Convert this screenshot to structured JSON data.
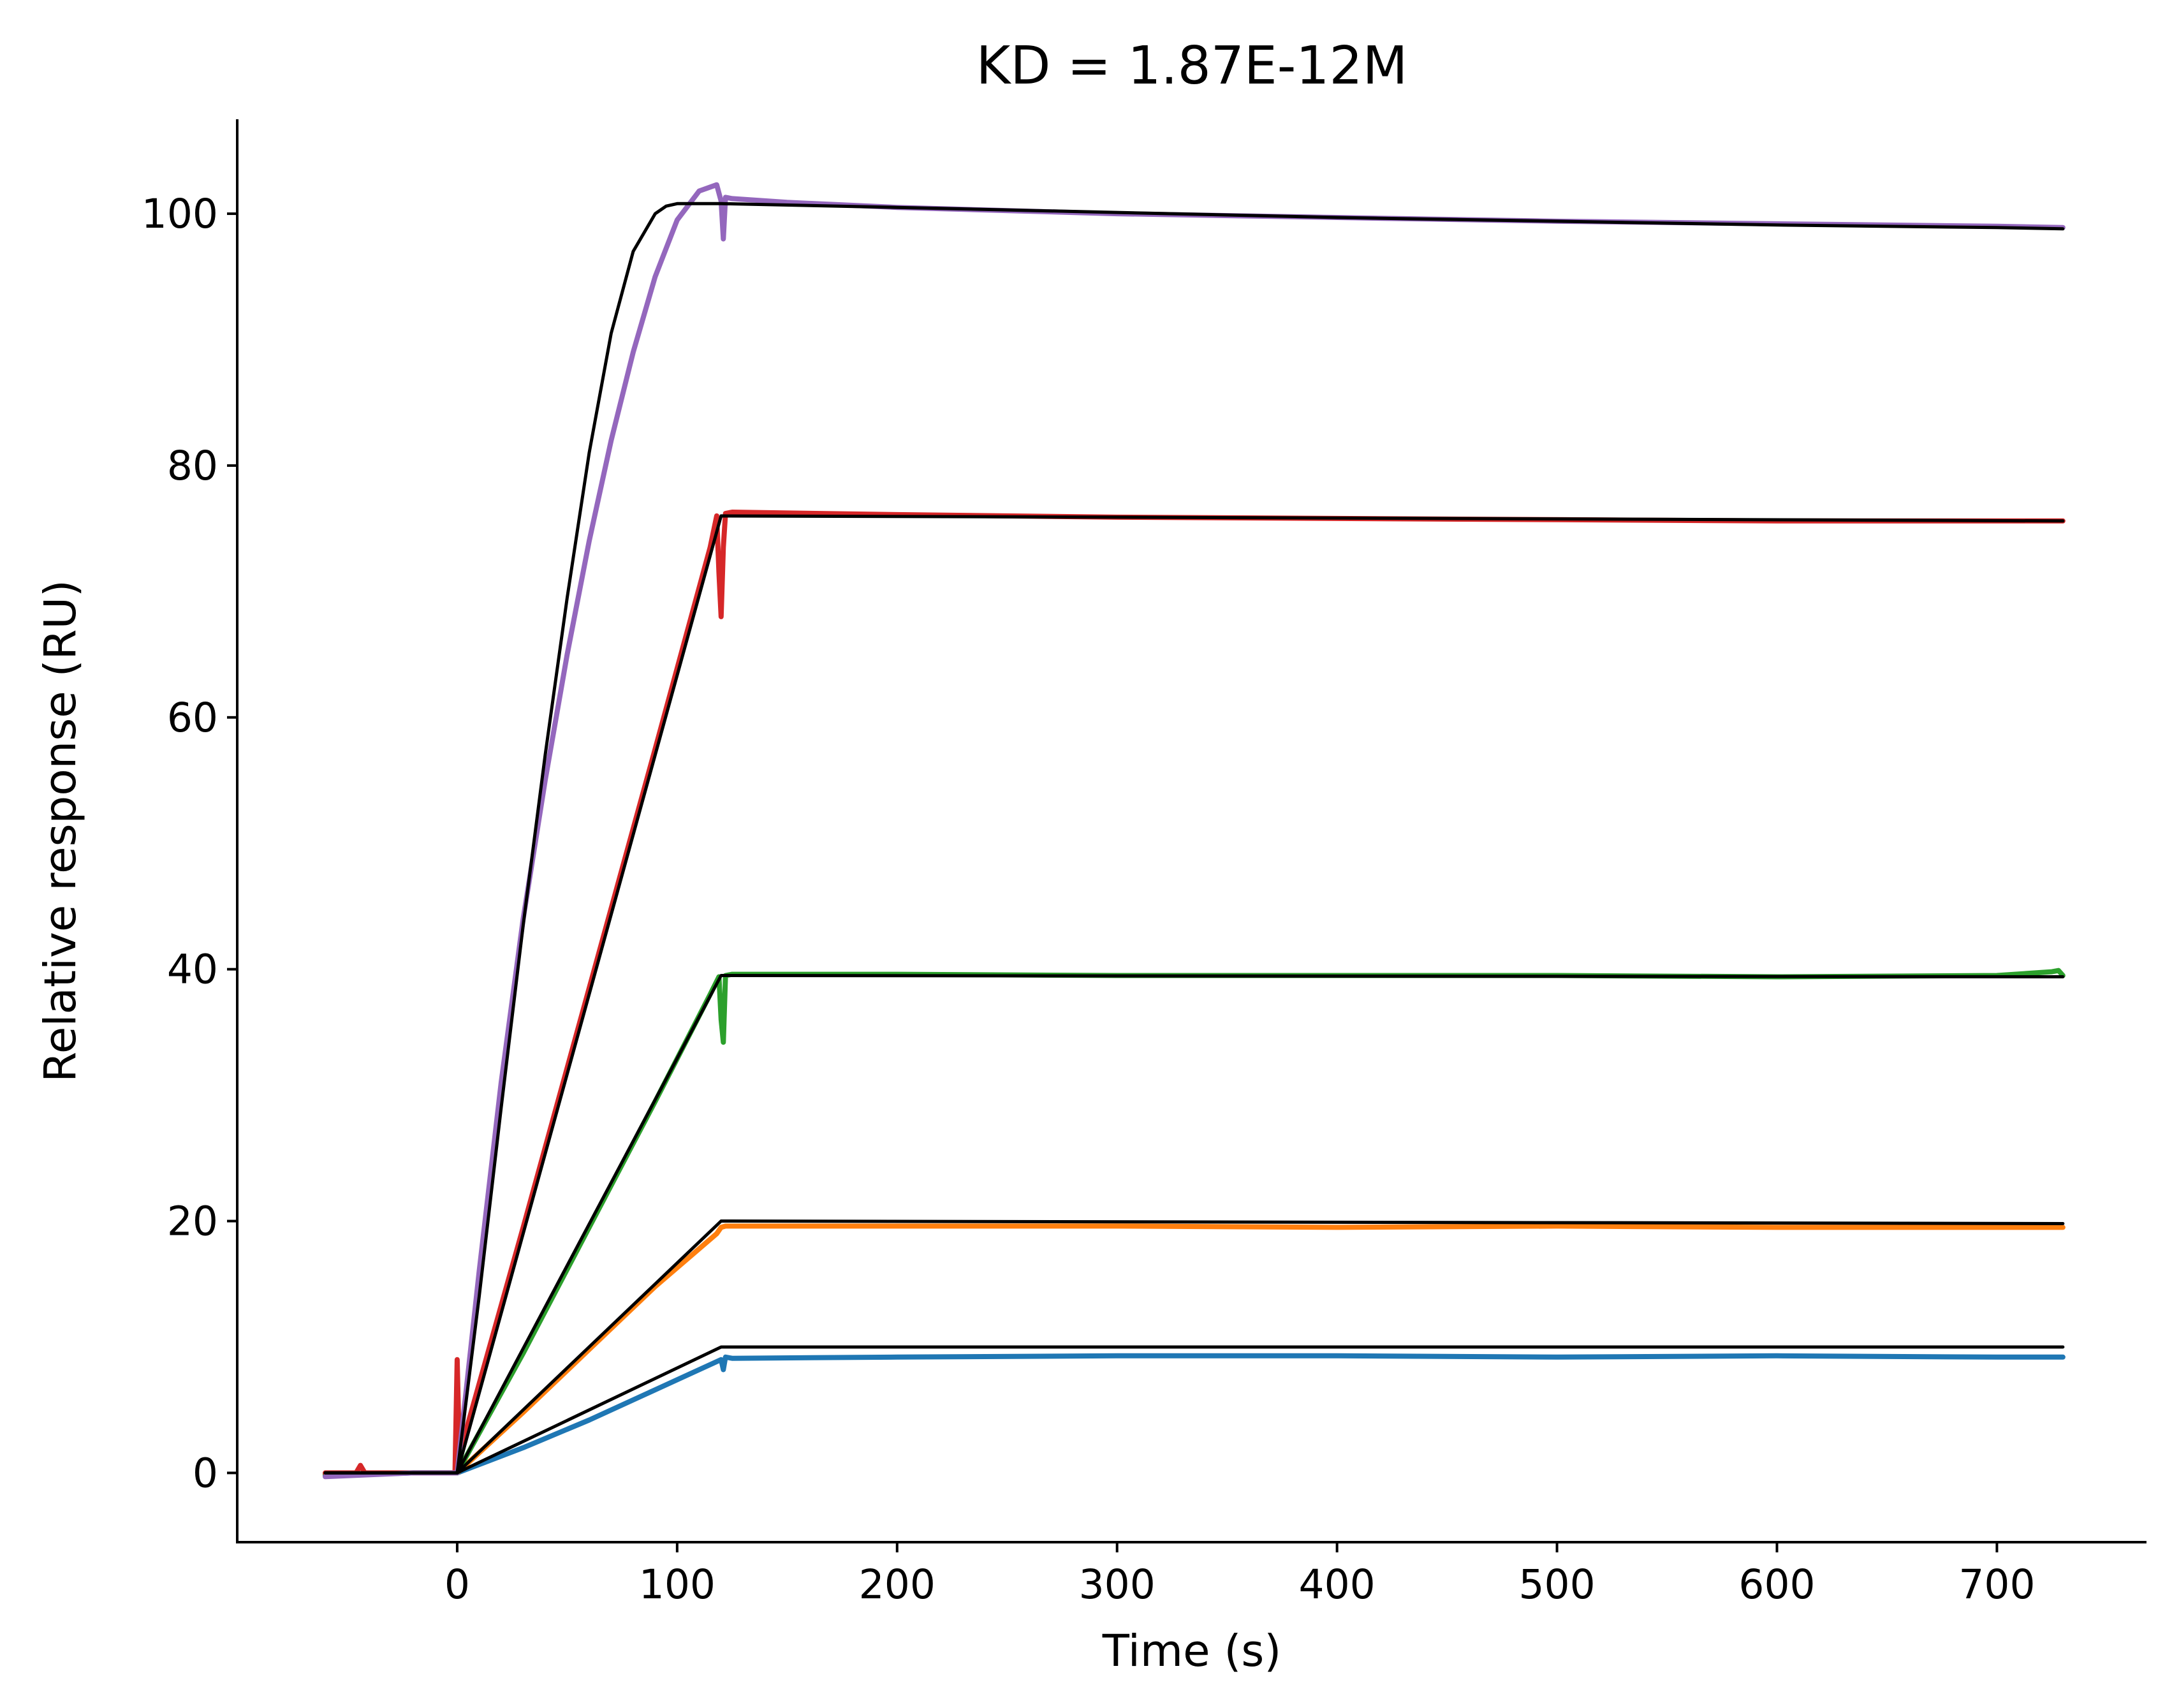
{
  "chart_data": {
    "type": "line",
    "title": "KD = 1.87E-12M",
    "xlabel": "Time (s)",
    "ylabel": "Relative response (RU)",
    "xlim": [
      -100,
      768
    ],
    "ylim": [
      -5.5,
      107.5
    ],
    "xticks": [
      0,
      100,
      200,
      300,
      400,
      500,
      600,
      700
    ],
    "yticks": [
      0,
      20,
      40,
      60,
      80,
      100
    ],
    "grid": false,
    "legend": "none",
    "series": [
      {
        "color": "#1f77b4",
        "x": [
          -60,
          -20,
          0,
          30,
          60,
          90,
          115,
          120,
          121,
          122,
          125,
          200,
          300,
          400,
          500,
          600,
          700,
          730
        ],
        "y": [
          -0.2,
          0,
          0,
          2.0,
          4.2,
          6.6,
          8.6,
          9.0,
          8.2,
          9.2,
          9.1,
          9.2,
          9.3,
          9.3,
          9.2,
          9.3,
          9.2,
          9.2
        ]
      },
      {
        "color": "#ff7f0e",
        "x": [
          -60,
          -20,
          0,
          30,
          60,
          90,
          118,
          120,
          122,
          200,
          300,
          400,
          500,
          600,
          700,
          730
        ],
        "y": [
          -0.1,
          0,
          0,
          4.8,
          9.8,
          14.8,
          19.0,
          19.5,
          19.6,
          19.6,
          19.6,
          19.5,
          19.6,
          19.5,
          19.5,
          19.5
        ]
      },
      {
        "color": "#2ca02c",
        "x": [
          -60,
          -20,
          0,
          30,
          60,
          90,
          115,
          119,
          120,
          121,
          122,
          125,
          200,
          300,
          400,
          500,
          600,
          700,
          725,
          728,
          730
        ],
        "y": [
          -0.1,
          0,
          0,
          9.5,
          19.5,
          29.5,
          38.0,
          39.4,
          36.0,
          34.2,
          39.5,
          39.6,
          39.6,
          39.5,
          39.5,
          39.5,
          39.4,
          39.5,
          39.8,
          39.9,
          39.5
        ]
      },
      {
        "color": "#d62728",
        "x": [
          -60,
          -46,
          -44,
          -42,
          -20,
          -1,
          0,
          1,
          30,
          60,
          90,
          115,
          118,
          119,
          120,
          121,
          122,
          125,
          200,
          300,
          400,
          500,
          600,
          700,
          730
        ],
        "y": [
          0,
          0,
          0.6,
          0,
          0,
          0,
          9.0,
          1.5,
          19.5,
          38.5,
          57.5,
          73.5,
          76.0,
          71.5,
          68.0,
          73.5,
          76.2,
          76.3,
          76.1,
          75.9,
          75.8,
          75.7,
          75.6,
          75.6,
          75.6
        ]
      },
      {
        "color": "#9467bd",
        "x": [
          -60,
          -20,
          0,
          10,
          20,
          30,
          40,
          50,
          60,
          70,
          80,
          90,
          100,
          110,
          118,
          120,
          121,
          122,
          125,
          150,
          200,
          300,
          400,
          500,
          600,
          700,
          730
        ],
        "y": [
          -0.3,
          0,
          0,
          16,
          31,
          44,
          55,
          65,
          74,
          82,
          89,
          95,
          99.5,
          101.8,
          102.3,
          101.0,
          98.0,
          101.3,
          101.2,
          100.9,
          100.5,
          100.0,
          99.7,
          99.4,
          99.2,
          99.0,
          98.9
        ]
      },
      {
        "color": "#000000",
        "x": [
          -60,
          0,
          120,
          730
        ],
        "y": [
          0,
          0,
          10.0,
          10.0
        ]
      },
      {
        "color": "#000000",
        "x": [
          -60,
          0,
          120,
          730
        ],
        "y": [
          0,
          0,
          20.0,
          19.8
        ]
      },
      {
        "color": "#000000",
        "x": [
          -60,
          0,
          120,
          730
        ],
        "y": [
          0,
          0,
          39.5,
          39.4
        ]
      },
      {
        "color": "#000000",
        "x": [
          -60,
          0,
          120,
          300,
          730
        ],
        "y": [
          0,
          0,
          76.0,
          75.9,
          75.6
        ]
      },
      {
        "color": "#000000",
        "x": [
          -60,
          0,
          10,
          20,
          30,
          40,
          50,
          60,
          70,
          80,
          90,
          95,
          100,
          110,
          120,
          200,
          300,
          400,
          500,
          600,
          700,
          730
        ],
        "y": [
          0,
          0,
          14,
          29,
          43.5,
          57,
          69.5,
          81,
          90.5,
          97,
          100,
          100.6,
          100.8,
          100.8,
          100.8,
          100.5,
          100.1,
          99.7,
          99.4,
          99.1,
          98.9,
          98.8
        ]
      }
    ]
  }
}
